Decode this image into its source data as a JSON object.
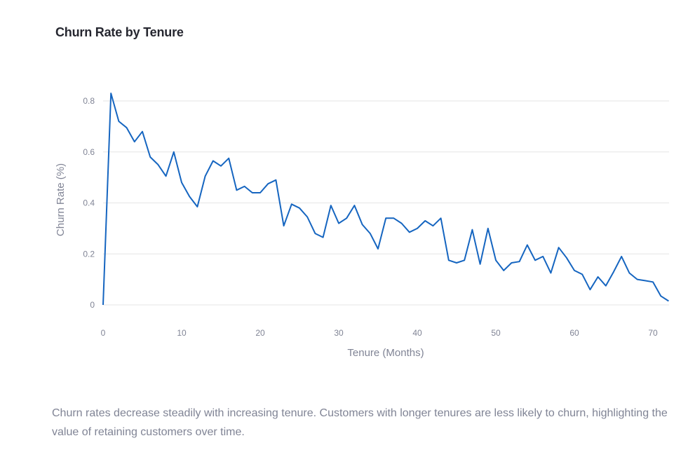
{
  "title": "Churn Rate by Tenure",
  "caption": "Churn rates decrease steadily with increasing tenure. Customers with longer tenures are less likely to churn, highlighting the value of retaining customers over time.",
  "colors": {
    "line": "#1565c0",
    "grid": "#e6e6e6",
    "axis_text": "#808495",
    "title": "#262730"
  },
  "chart_data": {
    "type": "line",
    "title": "Churn Rate by Tenure",
    "xlabel": "Tenure (Months)",
    "ylabel": "Churn Rate (%)",
    "xlim": [
      0,
      72
    ],
    "ylim": [
      0,
      0.8
    ],
    "xticks": [
      0,
      10,
      20,
      30,
      40,
      50,
      60,
      70
    ],
    "yticks": [
      0,
      0.2,
      0.4,
      0.6,
      0.8
    ],
    "ytick_labels": [
      "0",
      "0.2",
      "0.4",
      "0.6",
      "0.8"
    ],
    "grid": true,
    "x": [
      0,
      1,
      2,
      3,
      4,
      5,
      6,
      7,
      8,
      9,
      10,
      11,
      12,
      13,
      14,
      15,
      16,
      17,
      18,
      19,
      20,
      21,
      22,
      23,
      24,
      25,
      26,
      27,
      28,
      29,
      30,
      31,
      32,
      33,
      34,
      35,
      36,
      37,
      38,
      39,
      40,
      41,
      42,
      43,
      44,
      45,
      46,
      47,
      48,
      49,
      50,
      51,
      52,
      53,
      54,
      55,
      56,
      57,
      58,
      59,
      60,
      61,
      62,
      63,
      64,
      65,
      66,
      67,
      68,
      69,
      70,
      71,
      72
    ],
    "series": [
      {
        "values": [
          0.0,
          0.83,
          0.72,
          0.695,
          0.64,
          0.68,
          0.58,
          0.55,
          0.505,
          0.6,
          0.48,
          0.425,
          0.385,
          0.505,
          0.565,
          0.545,
          0.575,
          0.45,
          0.465,
          0.44,
          0.44,
          0.475,
          0.49,
          0.31,
          0.395,
          0.38,
          0.345,
          0.28,
          0.265,
          0.39,
          0.32,
          0.34,
          0.39,
          0.315,
          0.28,
          0.22,
          0.34,
          0.34,
          0.32,
          0.285,
          0.3,
          0.33,
          0.31,
          0.34,
          0.175,
          0.165,
          0.175,
          0.295,
          0.16,
          0.3,
          0.175,
          0.135,
          0.165,
          0.17,
          0.235,
          0.175,
          0.19,
          0.125,
          0.225,
          0.185,
          0.135,
          0.12,
          0.06,
          0.11,
          0.075,
          0.13,
          0.19,
          0.125,
          0.1,
          0.095,
          0.09,
          0.035,
          0.015
        ]
      }
    ]
  }
}
